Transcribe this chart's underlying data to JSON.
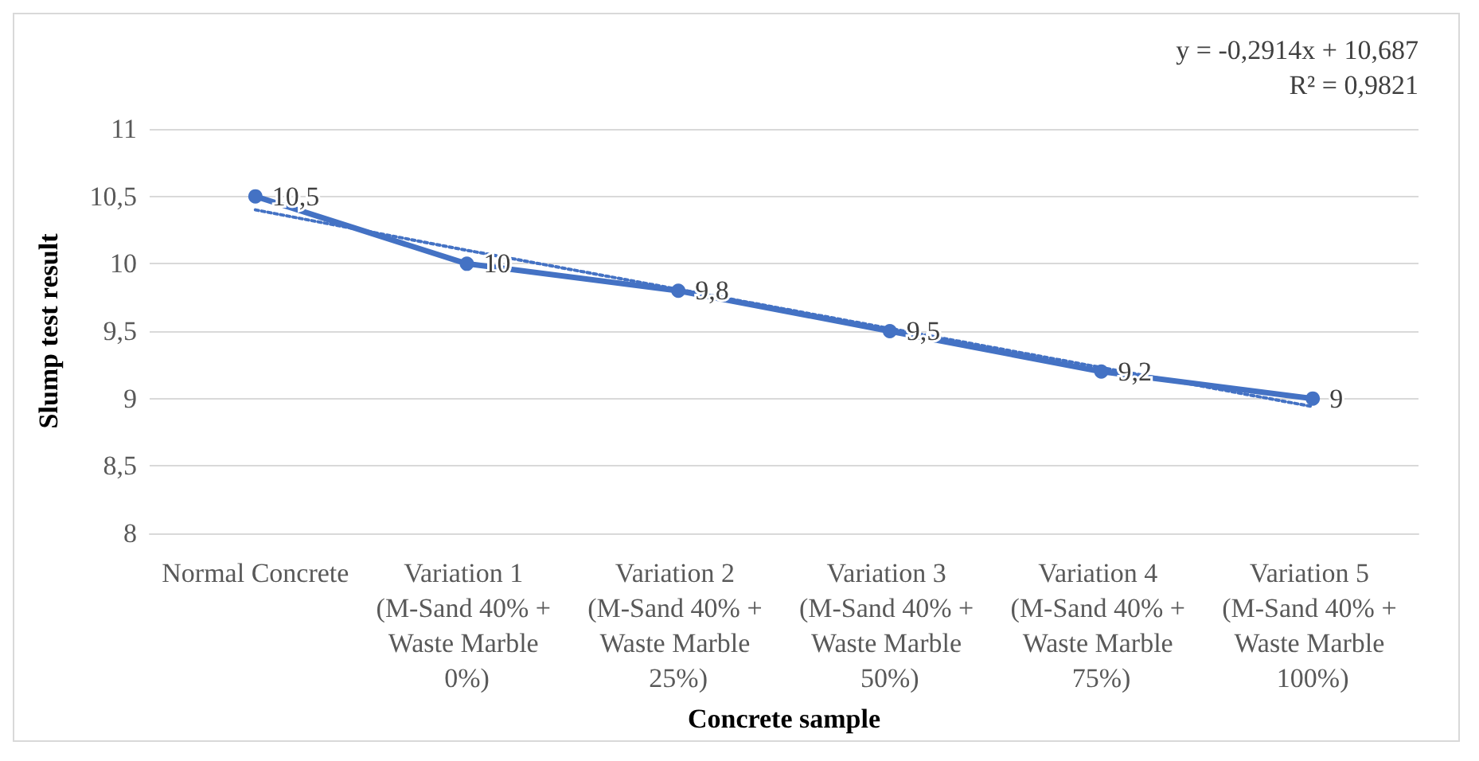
{
  "chart_data": {
    "type": "line",
    "xlabel": "Concrete sample",
    "ylabel": "Slump test result",
    "categories": [
      "Normal Concrete",
      "Variation 1 (M-Sand 40% + Waste Marble 0%)",
      "Variation 2 (M-Sand 40% + Waste Marble 25%)",
      "Variation 3 (M-Sand 40% + Waste Marble 50%)",
      "Variation 4 (M-Sand 40% + Waste Marble 75%)",
      "Variation 5 (M-Sand 40% + Waste Marble 100%)"
    ],
    "series": [
      {
        "color": "#4472c4",
        "values": [
          10.5,
          10,
          9.8,
          9.5,
          9.2,
          9
        ],
        "value_labels": [
          "10,5",
          "10",
          "9,8",
          "9,5",
          "9,2",
          "9"
        ],
        "marker": "circle",
        "line_style": "solid"
      },
      {
        "color": "#4472c4",
        "values": [
          10.4,
          10.1,
          9.81,
          9.52,
          9.23,
          8.94
        ],
        "marker": "none",
        "line_style": "dotted"
      }
    ],
    "ylim": [
      8,
      11
    ],
    "yticks": [
      8,
      {
        "value": 8.5,
        "label": "8,5"
      },
      9,
      {
        "value": 9.5,
        "label": "9,5"
      },
      10,
      {
        "value": 10.5,
        "label": "10,5"
      },
      11
    ],
    "grid": "y",
    "annotations": [
      "y = -0,2914x + 10,687",
      "R² = 0,9821"
    ]
  }
}
